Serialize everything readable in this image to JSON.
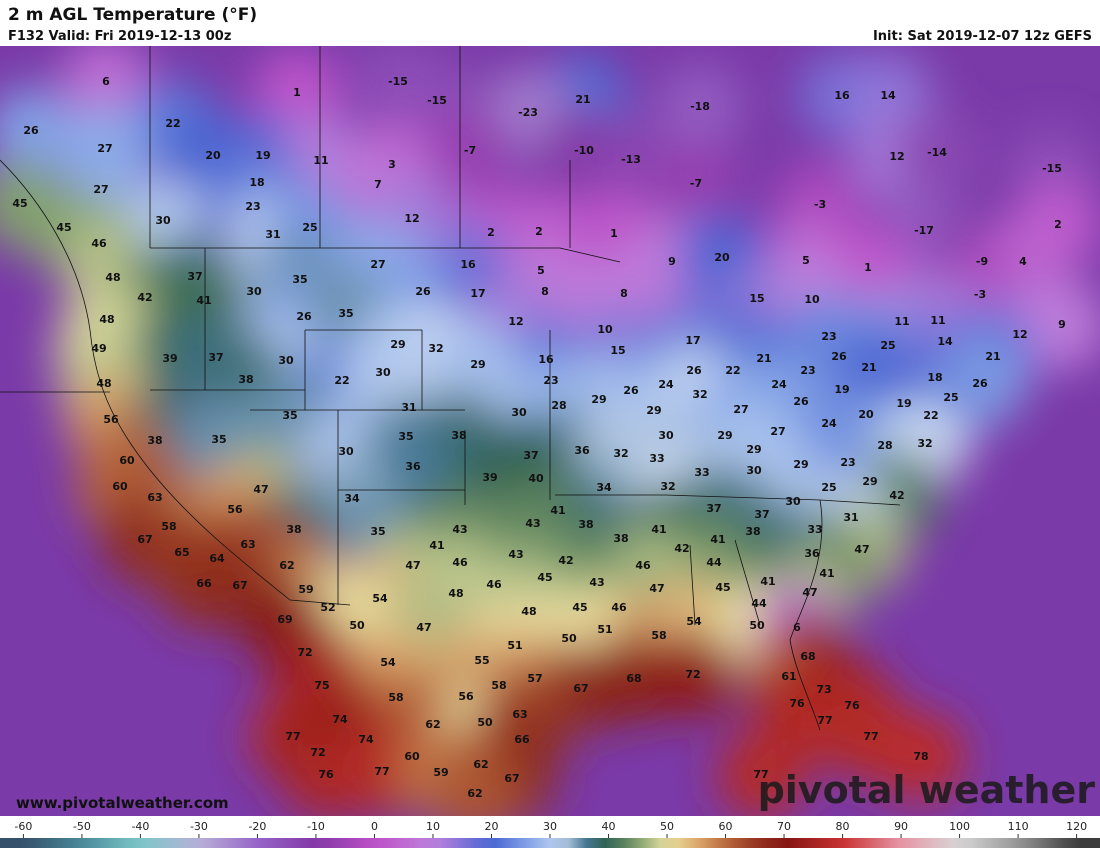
{
  "header": {
    "title": "2 m AGL Temperature (°F)",
    "valid": "F132 Valid: Fri 2019-12-13 00z",
    "init": "Init: Sat 2019-12-07 12z GEFS"
  },
  "map": {
    "labels": [
      6,
      1,
      -15,
      -15,
      21,
      -23,
      -18,
      16,
      14,
      26,
      22,
      -7,
      -10,
      -13,
      12,
      -14,
      -15,
      27,
      20,
      19,
      11,
      3,
      -7,
      27,
      18,
      7,
      45,
      23,
      30,
      12,
      -3,
      -17,
      2,
      45,
      31,
      25,
      2,
      2,
      1,
      9,
      20,
      5,
      1,
      -9,
      4,
      46,
      48,
      37,
      30,
      35,
      27,
      16,
      5,
      26,
      17,
      8,
      8,
      15,
      10,
      -3,
      42,
      41,
      26,
      35,
      12,
      10,
      11,
      11,
      12,
      9,
      48,
      49,
      39,
      37,
      30,
      29,
      32,
      16,
      15,
      17,
      23,
      26,
      25,
      14,
      21,
      48,
      38,
      22,
      30,
      29,
      23,
      26,
      24,
      26,
      22,
      21,
      21,
      18,
      26,
      24,
      23,
      19,
      56,
      35,
      31,
      30,
      28,
      29,
      29,
      32,
      25,
      19,
      26,
      22,
      20,
      38,
      35,
      30,
      35,
      38,
      36,
      32,
      30,
      29,
      27,
      27,
      24,
      28,
      32,
      60,
      36,
      37,
      33,
      33,
      29,
      30,
      29,
      23,
      39,
      40,
      34,
      29,
      25,
      42,
      60,
      47,
      34,
      32,
      63,
      56,
      41,
      38,
      37,
      37,
      30,
      31,
      58,
      38,
      35,
      43,
      43,
      41,
      33,
      38,
      67,
      63,
      41,
      42,
      41,
      38,
      36,
      47,
      65,
      64,
      62,
      47,
      46,
      43,
      42,
      46,
      44,
      41,
      66,
      67,
      59,
      45,
      46,
      43,
      47,
      45,
      41,
      47,
      52,
      54,
      48,
      45,
      46,
      44,
      69,
      50,
      47,
      48,
      50,
      51,
      58,
      54,
      50,
      6,
      72,
      54,
      55,
      51,
      68,
      75,
      58,
      56,
      58,
      57,
      67,
      68,
      72,
      61,
      73,
      74,
      62,
      50,
      63,
      76,
      77,
      76,
      77,
      74,
      66,
      72,
      60,
      62,
      77,
      78,
      76,
      77,
      59,
      67,
      62,
      77
    ]
  },
  "colorbar": {
    "range": [
      -64,
      124
    ],
    "ticks": [
      -60,
      -50,
      -40,
      -30,
      -20,
      -10,
      0,
      10,
      20,
      30,
      40,
      50,
      60,
      70,
      80,
      90,
      100,
      110,
      120
    ]
  },
  "footer": {
    "website": "www.pivotalweather.com",
    "watermark": "pivotal weather"
  }
}
